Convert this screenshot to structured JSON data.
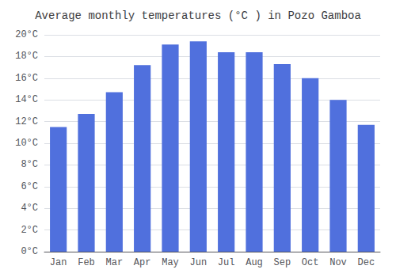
{
  "chart_data": {
    "type": "bar",
    "title": "Average monthly temperatures (°C ) in Pozo Gamboa",
    "categories": [
      "Jan",
      "Feb",
      "Mar",
      "Apr",
      "May",
      "Jun",
      "Jul",
      "Aug",
      "Sep",
      "Oct",
      "Nov",
      "Dec"
    ],
    "values": [
      11.5,
      12.7,
      14.7,
      17.2,
      19.1,
      19.4,
      18.4,
      18.4,
      17.3,
      16.0,
      14.0,
      11.7
    ],
    "ylim": [
      0,
      20
    ],
    "yticks": [
      {
        "value": 0,
        "label": "0°C"
      },
      {
        "value": 2,
        "label": "2°C"
      },
      {
        "value": 4,
        "label": "4°C"
      },
      {
        "value": 6,
        "label": "6°C"
      },
      {
        "value": 8,
        "label": "8°C"
      },
      {
        "value": 10,
        "label": "10°C"
      },
      {
        "value": 12,
        "label": "12°C"
      },
      {
        "value": 14,
        "label": "14°C"
      },
      {
        "value": 16,
        "label": "16°C"
      },
      {
        "value": 18,
        "label": "18°C"
      },
      {
        "value": 20,
        "label": "20°C"
      }
    ],
    "grid": true
  }
}
